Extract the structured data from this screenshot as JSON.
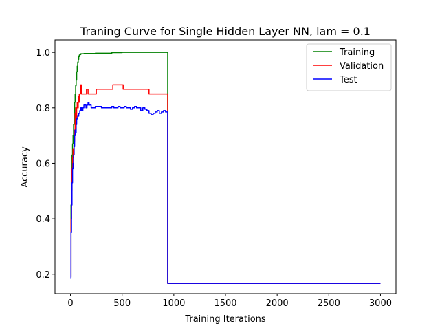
{
  "chart_data": {
    "type": "line",
    "title": "Traning Curve for Single Hidden Layer NN, lam = 0.1",
    "xlabel": "Training Iterations",
    "ylabel": "Accuracy",
    "xlim": [
      -150,
      3150
    ],
    "ylim": [
      0.13,
      1.045
    ],
    "xticks": [
      0,
      500,
      1000,
      1500,
      2000,
      2500,
      3000
    ],
    "xtick_labels": [
      "0",
      "500",
      "1000",
      "1500",
      "2000",
      "2500",
      "3000"
    ],
    "yticks": [
      0.2,
      0.4,
      0.6,
      0.8,
      1.0
    ],
    "ytick_labels": [
      "0.2",
      "0.4",
      "0.6",
      "0.8",
      "1.0"
    ],
    "legend_position": "top-right",
    "series": [
      {
        "name": "Training",
        "color": "#008000",
        "x": [
          0,
          5,
          10,
          15,
          20,
          25,
          30,
          35,
          40,
          45,
          50,
          55,
          60,
          65,
          70,
          75,
          80,
          85,
          90,
          100,
          110,
          130,
          150,
          200,
          240,
          300,
          400,
          500,
          600,
          700,
          800,
          900,
          940,
          941,
          1000,
          1500,
          2000,
          2500,
          3000
        ],
        "y": [
          0.19,
          0.45,
          0.56,
          0.63,
          0.67,
          0.7,
          0.74,
          0.78,
          0.82,
          0.85,
          0.88,
          0.9,
          0.93,
          0.95,
          0.965,
          0.975,
          0.985,
          0.99,
          0.992,
          0.995,
          0.995,
          0.996,
          0.996,
          0.996,
          0.997,
          0.997,
          0.999,
          1.0,
          1.0,
          1.0,
          1.0,
          1.0,
          1.0,
          0.167,
          0.167,
          0.167,
          0.167,
          0.167,
          0.167
        ]
      },
      {
        "name": "Validation",
        "color": "#ff0000",
        "x": [
          0,
          5,
          10,
          15,
          20,
          25,
          30,
          35,
          40,
          45,
          50,
          55,
          60,
          65,
          70,
          75,
          80,
          85,
          90,
          95,
          100,
          105,
          110,
          120,
          130,
          140,
          150,
          155,
          160,
          170,
          180,
          200,
          220,
          240,
          250,
          300,
          350,
          400,
          410,
          420,
          450,
          480,
          500,
          510,
          520,
          600,
          700,
          750,
          760,
          800,
          900,
          940,
          941,
          1000,
          1500,
          2000,
          2500,
          3000
        ],
        "y": [
          0.19,
          0.4,
          0.5,
          0.58,
          0.62,
          0.65,
          0.63,
          0.68,
          0.72,
          0.78,
          0.8,
          0.76,
          0.8,
          0.82,
          0.8,
          0.84,
          0.82,
          0.85,
          0.85,
          0.87,
          0.883,
          0.85,
          0.85,
          0.85,
          0.85,
          0.85,
          0.85,
          0.867,
          0.867,
          0.85,
          0.85,
          0.85,
          0.85,
          0.85,
          0.867,
          0.867,
          0.867,
          0.867,
          0.883,
          0.883,
          0.883,
          0.883,
          0.883,
          0.867,
          0.867,
          0.867,
          0.867,
          0.867,
          0.85,
          0.85,
          0.85,
          0.85,
          0.167,
          0.167,
          0.167,
          0.167,
          0.167,
          0.167
        ]
      },
      {
        "name": "Test",
        "color": "#0000ff",
        "x": [
          0,
          5,
          10,
          15,
          20,
          25,
          30,
          35,
          40,
          45,
          50,
          55,
          60,
          70,
          80,
          90,
          100,
          110,
          120,
          130,
          140,
          150,
          160,
          170,
          180,
          190,
          200,
          220,
          240,
          260,
          280,
          300,
          350,
          400,
          420,
          440,
          460,
          480,
          500,
          520,
          540,
          560,
          580,
          600,
          620,
          640,
          660,
          680,
          700,
          720,
          740,
          760,
          780,
          800,
          820,
          840,
          860,
          880,
          900,
          920,
          940,
          941,
          1000,
          1500,
          2000,
          2500,
          3000
        ],
        "y": [
          0.185,
          0.35,
          0.45,
          0.53,
          0.58,
          0.6,
          0.63,
          0.66,
          0.7,
          0.72,
          0.71,
          0.74,
          0.76,
          0.77,
          0.78,
          0.79,
          0.8,
          0.79,
          0.8,
          0.81,
          0.81,
          0.8,
          0.81,
          0.82,
          0.81,
          0.81,
          0.8,
          0.8,
          0.805,
          0.805,
          0.805,
          0.8,
          0.8,
          0.805,
          0.8,
          0.8,
          0.805,
          0.8,
          0.8,
          0.805,
          0.8,
          0.8,
          0.795,
          0.8,
          0.805,
          0.8,
          0.8,
          0.79,
          0.8,
          0.795,
          0.79,
          0.78,
          0.775,
          0.78,
          0.785,
          0.79,
          0.78,
          0.785,
          0.79,
          0.785,
          0.785,
          0.167,
          0.167,
          0.167,
          0.167,
          0.167,
          0.167
        ]
      }
    ]
  }
}
